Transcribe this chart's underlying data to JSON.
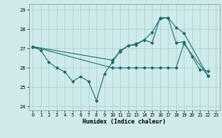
{
  "title": "",
  "xlabel": "Humidex (Indice chaleur)",
  "ylabel": "",
  "bg_color": "#ceeaea",
  "line_color": "#1a6b6b",
  "grid_color": "#a8cccc",
  "xlim": [
    -0.5,
    23.5
  ],
  "ylim": [
    23.8,
    29.3
  ],
  "yticks": [
    24,
    25,
    26,
    27,
    28,
    29
  ],
  "xticks": [
    0,
    1,
    2,
    3,
    4,
    5,
    6,
    7,
    8,
    9,
    10,
    11,
    12,
    13,
    14,
    15,
    16,
    17,
    18,
    19,
    20,
    21,
    22,
    23
  ],
  "series1_x": [
    0,
    1,
    2,
    3,
    4,
    5,
    6,
    7,
    8,
    9,
    10,
    11,
    12,
    13,
    14,
    15,
    16,
    17,
    18,
    19,
    20,
    21,
    22
  ],
  "series1_y": [
    27.1,
    26.9,
    26.3,
    26.0,
    25.8,
    25.3,
    25.55,
    25.3,
    24.3,
    25.7,
    26.3,
    26.9,
    27.15,
    27.2,
    27.45,
    27.3,
    28.6,
    28.6,
    27.3,
    27.35,
    26.6,
    25.9,
    25.85
  ],
  "series2_x": [
    0,
    10,
    11,
    12,
    13,
    14,
    15,
    16,
    17,
    18,
    19,
    22
  ],
  "series2_y": [
    27.1,
    26.4,
    26.85,
    27.15,
    27.25,
    27.45,
    27.85,
    28.55,
    28.6,
    28.1,
    27.8,
    25.6
  ],
  "series3_x": [
    0,
    10,
    11,
    12,
    13,
    14,
    15,
    16,
    17,
    18,
    19,
    22
  ],
  "series3_y": [
    27.1,
    26.0,
    26.0,
    26.0,
    26.0,
    26.0,
    26.0,
    26.0,
    26.0,
    26.0,
    27.25,
    25.6
  ]
}
